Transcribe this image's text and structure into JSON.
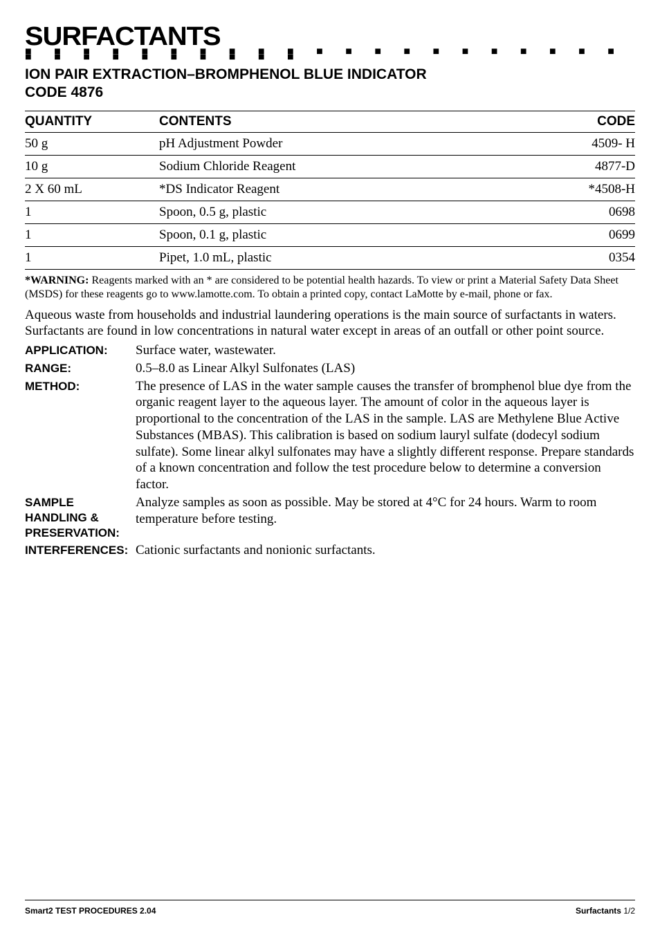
{
  "title": "SURFACTANTS",
  "dots": "■ ■ ■ ■ ■ ■ ■ ■ ■ ■ ■ ■ ■ ■ ■ ■ ■ ■ ■ ■ ■ ■ ■ ■ ■ ■ ■ ■ ■ ■ ■",
  "subtitle_line1": "ION PAIR EXTRACTION–BROMPHENOL BLUE INDICATOR",
  "subtitle_line2": "CODE 4876",
  "table": {
    "headers": [
      "QUANTITY",
      "CONTENTS",
      "CODE"
    ],
    "rows": [
      [
        "50 g",
        "pH Adjustment Powder",
        "4509- H"
      ],
      [
        "10 g",
        "Sodium Chloride Reagent",
        "4877-D"
      ],
      [
        "2 X 60 mL",
        "*DS Indicator Reagent",
        "*4508-H"
      ],
      [
        "1",
        "Spoon, 0.5 g, plastic",
        "0698"
      ],
      [
        "1",
        "Spoon, 0.1 g, plastic",
        "0699"
      ],
      [
        "1",
        "Pipet, 1.0 mL, plastic",
        "0354"
      ]
    ]
  },
  "warning_label": "*WARNING:",
  "warning_body": " Reagents marked with an * are considered to be potential health hazards. To view or print a Material Safety Data Sheet (MSDS) for these reagents go to www.lamotte.com. To obtain a printed copy, contact LaMotte by e-mail, phone or fax.",
  "intro": "Aqueous waste from households and industrial laundering operations is the main source of surfactants in waters. Surfactants are found in low concentrations in natural water except in areas of an outfall or other point source.",
  "definitions": [
    {
      "label": "APPLICATION:",
      "body": "Surface water, wastewater."
    },
    {
      "label": "RANGE:",
      "body": "0.5–8.0  as Linear Alkyl Sulfonates (LAS)"
    },
    {
      "label": "METHOD:",
      "body": "The presence of LAS in the water sample causes the transfer of bromphenol blue dye from the organic reagent layer to the aqueous layer. The amount of color in the aqueous layer is proportional to the concentration of the LAS in the sample. LAS are Methylene Blue Active Substances (MBAS). This calibration is based on sodium lauryl sulfate (dodecyl sodium sulfate). Some linear alkyl sulfonates may have a slightly different response. Prepare standards of a known concentration and follow the test procedure below to determine a conversion factor."
    },
    {
      "label": "SAMPLE HANDLING & PRESERVATION:",
      "body": "Analyze samples as soon as possible. May be stored at 4°C for 24 hours. Warm to room temperature before testing."
    },
    {
      "label": "INTERFERENCES:",
      "body": "Cationic surfactants and nonionic surfactants."
    }
  ],
  "footer_left": "Smart2 TEST PROCEDURES  2.04",
  "footer_right_bold": "Surfactants",
  "footer_right_page": "  1/2",
  "colors": {
    "text": "#000000",
    "background": "#ffffff",
    "rule": "#000000"
  },
  "fontsizes": {
    "title": 38,
    "subtitle": 21,
    "table_header": 19,
    "table_cell": 19,
    "warning": 16,
    "intro": 19,
    "def_label": 17,
    "def_body": 19,
    "footer": 12
  }
}
